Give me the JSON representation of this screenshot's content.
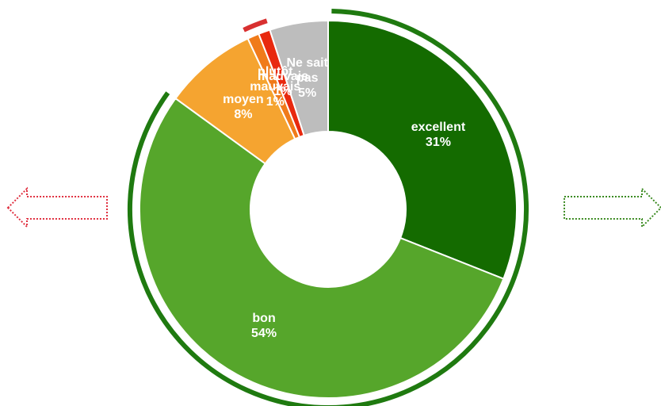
{
  "chart_data": {
    "type": "donut",
    "categories": [
      "excellent",
      "bon",
      "moyen",
      "plutôt mauvais",
      "mauvais",
      "Ne sait pas"
    ],
    "values": [
      31,
      54,
      8,
      1,
      1,
      5
    ],
    "value_labels": [
      "31%",
      "54%",
      "8%",
      "1%",
      "1%",
      "5%"
    ],
    "colors": [
      "#146b00",
      "#56a62b",
      "#f5a430",
      "#f07b1a",
      "#e8290f",
      "#bdbdbd"
    ]
  }
}
